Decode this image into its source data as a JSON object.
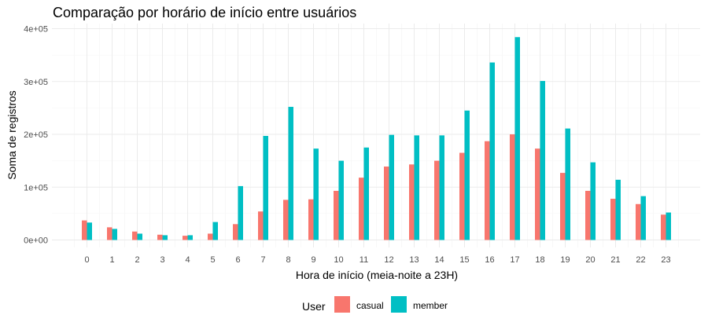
{
  "chart_data": {
    "type": "bar",
    "title": "Comparação por horário de início entre usuários",
    "xlabel": "Hora de início (meia-noite a 23H)",
    "ylabel": "Soma de registros",
    "categories": [
      "0",
      "1",
      "2",
      "3",
      "4",
      "5",
      "6",
      "7",
      "8",
      "9",
      "10",
      "11",
      "12",
      "13",
      "14",
      "15",
      "16",
      "17",
      "18",
      "19",
      "20",
      "21",
      "22",
      "23"
    ],
    "series": [
      {
        "name": "casual",
        "color": "#F8766D",
        "values": [
          37000,
          24000,
          16000,
          10000,
          8000,
          12000,
          30000,
          54000,
          76000,
          77000,
          93000,
          118000,
          139000,
          143000,
          150000,
          165000,
          187000,
          200000,
          173000,
          127000,
          93000,
          78000,
          68000,
          48000
        ]
      },
      {
        "name": "member",
        "color": "#00BFC4",
        "values": [
          33000,
          21000,
          12000,
          9000,
          9000,
          34000,
          102000,
          197000,
          252000,
          173000,
          150000,
          175000,
          199000,
          198000,
          198000,
          245000,
          336000,
          384000,
          301000,
          211000,
          147000,
          114000,
          83000,
          52000
        ]
      }
    ],
    "ylim": [
      0,
      420000
    ],
    "yticks": [
      0,
      100000,
      200000,
      300000,
      400000
    ],
    "ytick_labels": [
      "0e+00",
      "1e+05",
      "2e+05",
      "3e+05",
      "4e+05"
    ],
    "grid": true,
    "legend": {
      "title": "User",
      "position": "bottom"
    }
  }
}
